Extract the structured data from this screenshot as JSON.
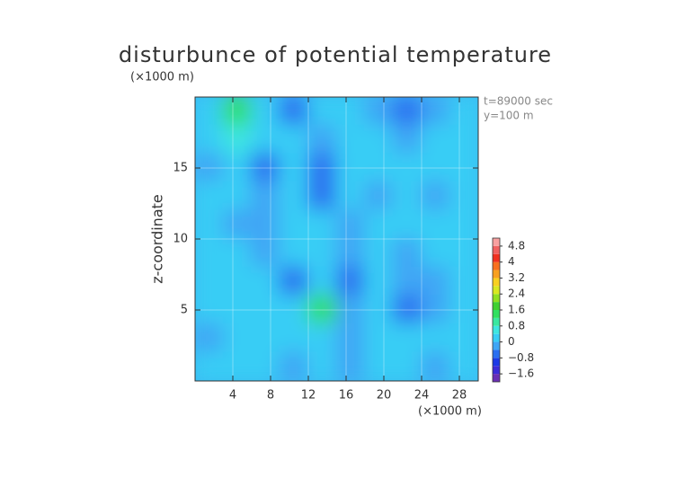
{
  "chart_data": {
    "type": "contour",
    "title": "disturbunce of potential temperature",
    "x_label": "(×1000 m)",
    "y_label": "z-coordinate",
    "y_unit": "(×1000 m)",
    "annotations": [
      "t=89000 sec",
      "y=100 m"
    ],
    "x": [
      1.5,
      4.5,
      7.5,
      10.5,
      13.5,
      16.5,
      19.5,
      22.5,
      25.5,
      28.5
    ],
    "y": [
      19,
      17,
      15,
      13,
      11,
      9,
      7,
      5,
      3,
      1
    ],
    "z": [
      [
        0.3,
        1.4,
        0.1,
        -0.5,
        0.1,
        0.2,
        -0.4,
        -0.7,
        -0.3,
        0.2
      ],
      [
        0.2,
        0.4,
        0.1,
        0.0,
        -0.4,
        0.2,
        0.0,
        -0.3,
        0.0,
        0.3
      ],
      [
        -0.3,
        0.1,
        -0.5,
        0.2,
        -0.6,
        0.1,
        0.2,
        0.1,
        0.2,
        0.1
      ],
      [
        0.1,
        0.2,
        -0.4,
        0.1,
        -0.5,
        0.0,
        -0.3,
        0.2,
        -0.2,
        0.2
      ],
      [
        0.2,
        -0.2,
        -0.3,
        0.2,
        0.1,
        -0.3,
        0.1,
        0.0,
        0.2,
        0.1
      ],
      [
        0.1,
        0.2,
        -0.2,
        0.0,
        0.2,
        -0.4,
        0.2,
        -0.2,
        0.1,
        0.2
      ],
      [
        0.0,
        0.2,
        0.1,
        -0.5,
        0.3,
        -0.5,
        0.1,
        -0.4,
        -0.3,
        0.2
      ],
      [
        0.2,
        0.0,
        0.1,
        0.3,
        1.3,
        -0.4,
        0.1,
        -0.7,
        -0.2,
        0.1
      ],
      [
        -0.3,
        0.1,
        0.2,
        0.0,
        0.1,
        -0.4,
        0.2,
        0.1,
        0.2,
        0.0
      ],
      [
        0.2,
        0.1,
        0.0,
        -0.3,
        0.2,
        -0.2,
        0.1,
        0.0,
        -0.3,
        0.2
      ]
    ],
    "xlim": [
      0,
      30
    ],
    "ylim": [
      0,
      20
    ],
    "xticks": [
      4,
      8,
      12,
      16,
      20,
      24,
      28
    ],
    "yticks": [
      5,
      10,
      15
    ],
    "grid": true,
    "colorbar": {
      "levels": [
        -2.0,
        -1.6,
        -1.2,
        -0.8,
        -0.4,
        0,
        0.4,
        0.8,
        1.2,
        1.6,
        2.0,
        2.4,
        2.8,
        3.2,
        3.6,
        4.0,
        4.4,
        4.8,
        5.2
      ],
      "colors": [
        "#6a2fb5",
        "#3c2cd8",
        "#1c3ae6",
        "#2a6ff0",
        "#3fa6f5",
        "#38cdf5",
        "#3ee6e0",
        "#3ae8a0",
        "#30e060",
        "#40d030",
        "#90e020",
        "#d8e820",
        "#f8d020",
        "#f8a020",
        "#f87020",
        "#f03020",
        "#f06060",
        "#f8a0a0"
      ],
      "ticks": [
        {
          "value": -1.6,
          "label": "−1.6"
        },
        {
          "value": -0.8,
          "label": "−0.8"
        },
        0,
        0.8,
        1.6,
        2.4,
        3.2,
        4,
        4.8
      ]
    }
  }
}
